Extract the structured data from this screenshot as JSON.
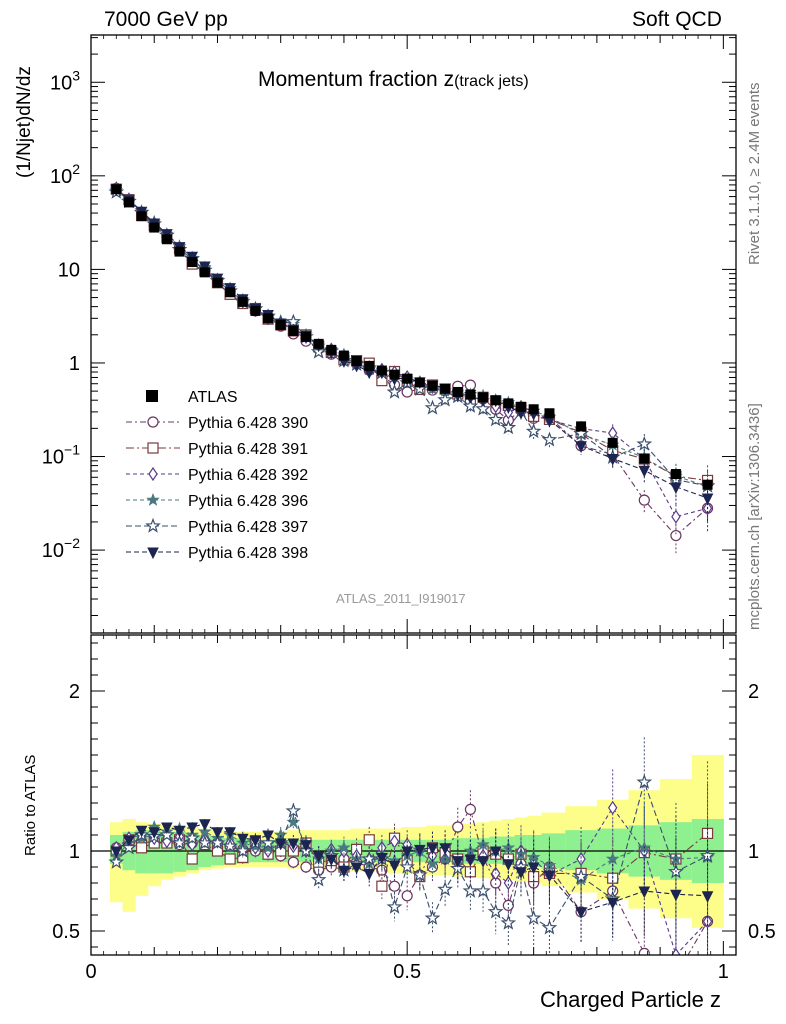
{
  "header": {
    "left": "7000 GeV pp",
    "right": "Soft QCD"
  },
  "side_labels": {
    "rivet": "Rivet 3.1.10, ≥ 2.4M events",
    "mcplots": "mcplots.cern.ch [arXiv:1306.3436]"
  },
  "plot": {
    "title_main": "Momentum fraction z",
    "title_sub": "(track jets)",
    "analysis_ref": "ATLAS_2011_I919017",
    "ylabel_main": "(1/Njet)dN/dz",
    "ylabel_ratio": "Ratio to ATLAS",
    "xlabel": "Charged Particle z"
  },
  "ticks": {
    "x": [
      {
        "v": 0,
        "label": "0"
      },
      {
        "v": 0.5,
        "label": "0.5"
      },
      {
        "v": 1,
        "label": "1"
      }
    ],
    "y_main": [
      {
        "v": 0.01,
        "base": "10",
        "exp": "−2"
      },
      {
        "v": 0.1,
        "base": "10",
        "exp": "−1"
      },
      {
        "v": 1,
        "base": "1",
        "exp": ""
      },
      {
        "v": 10,
        "base": "10",
        "exp": ""
      },
      {
        "v": 100,
        "base": "10",
        "exp": "2"
      },
      {
        "v": 1000,
        "base": "10",
        "exp": "3"
      }
    ],
    "y_ratio": [
      {
        "v": 0.5,
        "label": "0.5"
      },
      {
        "v": 1,
        "label": "1"
      },
      {
        "v": 2,
        "label": "2"
      }
    ]
  },
  "colors": {
    "yellow_band": "#fdfd8a",
    "green_band": "#8ef08e",
    "data": "#000000"
  },
  "chart_data": {
    "type": "line",
    "xlim": [
      0,
      1.02
    ],
    "ylim_main": [
      0.0013,
      3200
    ],
    "yscale_main": "log",
    "ylim_ratio": [
      0.35,
      2.35
    ],
    "x": [
      0.04,
      0.06,
      0.08,
      0.1,
      0.12,
      0.14,
      0.16,
      0.18,
      0.2,
      0.22,
      0.24,
      0.26,
      0.28,
      0.3,
      0.32,
      0.34,
      0.36,
      0.38,
      0.4,
      0.42,
      0.44,
      0.46,
      0.48,
      0.5,
      0.52,
      0.54,
      0.56,
      0.58,
      0.6,
      0.62,
      0.64,
      0.66,
      0.68,
      0.7,
      0.725,
      0.775,
      0.825,
      0.875,
      0.925,
      0.975
    ],
    "data": {
      "name": "ATLAS",
      "values": [
        72,
        52,
        37,
        28,
        21,
        15.5,
        12,
        9.3,
        7.2,
        5.7,
        4.5,
        3.6,
        3.0,
        2.55,
        2.2,
        1.9,
        1.6,
        1.38,
        1.2,
        1.05,
        0.93,
        0.83,
        0.75,
        0.68,
        0.62,
        0.57,
        0.53,
        0.49,
        0.46,
        0.43,
        0.4,
        0.37,
        0.34,
        0.32,
        0.29,
        0.21,
        0.14,
        0.095,
        0.065,
        0.05
      ],
      "band_inner": [
        [
          0.92,
          1.1
        ],
        [
          0.88,
          1.12
        ],
        [
          0.86,
          1.13
        ],
        [
          0.86,
          1.13
        ],
        [
          0.86,
          1.12
        ],
        [
          0.87,
          1.12
        ],
        [
          0.88,
          1.11
        ],
        [
          0.9,
          1.1
        ],
        [
          0.91,
          1.09
        ],
        [
          0.92,
          1.08
        ],
        [
          0.92,
          1.08
        ],
        [
          0.93,
          1.07
        ],
        [
          0.93,
          1.07
        ],
        [
          0.93,
          1.07
        ],
        [
          0.93,
          1.07
        ],
        [
          0.93,
          1.07
        ],
        [
          0.93,
          1.07
        ],
        [
          0.93,
          1.07
        ],
        [
          0.93,
          1.07
        ],
        [
          0.93,
          1.07
        ],
        [
          0.93,
          1.07
        ],
        [
          0.93,
          1.07
        ],
        [
          0.93,
          1.07
        ],
        [
          0.93,
          1.07
        ],
        [
          0.93,
          1.07
        ],
        [
          0.93,
          1.07
        ],
        [
          0.93,
          1.07
        ],
        [
          0.92,
          1.08
        ],
        [
          0.92,
          1.08
        ],
        [
          0.92,
          1.08
        ],
        [
          0.92,
          1.09
        ],
        [
          0.91,
          1.09
        ],
        [
          0.91,
          1.1
        ],
        [
          0.9,
          1.1
        ],
        [
          0.89,
          1.11
        ],
        [
          0.88,
          1.13
        ],
        [
          0.86,
          1.14
        ],
        [
          0.84,
          1.16
        ],
        [
          0.82,
          1.18
        ],
        [
          0.8,
          1.2
        ]
      ],
      "band_outer": [
        [
          0.68,
          1.18
        ],
        [
          0.62,
          1.2
        ],
        [
          0.72,
          1.18
        ],
        [
          0.78,
          1.17
        ],
        [
          0.82,
          1.16
        ],
        [
          0.84,
          1.16
        ],
        [
          0.86,
          1.15
        ],
        [
          0.88,
          1.14
        ],
        [
          0.89,
          1.13
        ],
        [
          0.9,
          1.12
        ],
        [
          0.9,
          1.12
        ],
        [
          0.9,
          1.12
        ],
        [
          0.9,
          1.12
        ],
        [
          0.9,
          1.12
        ],
        [
          0.89,
          1.13
        ],
        [
          0.89,
          1.13
        ],
        [
          0.88,
          1.13
        ],
        [
          0.88,
          1.13
        ],
        [
          0.88,
          1.13
        ],
        [
          0.87,
          1.14
        ],
        [
          0.87,
          1.14
        ],
        [
          0.87,
          1.14
        ],
        [
          0.86,
          1.14
        ],
        [
          0.86,
          1.15
        ],
        [
          0.86,
          1.15
        ],
        [
          0.85,
          1.16
        ],
        [
          0.85,
          1.16
        ],
        [
          0.84,
          1.17
        ],
        [
          0.84,
          1.17
        ],
        [
          0.83,
          1.18
        ],
        [
          0.82,
          1.19
        ],
        [
          0.82,
          1.2
        ],
        [
          0.81,
          1.21
        ],
        [
          0.8,
          1.22
        ],
        [
          0.78,
          1.24
        ],
        [
          0.74,
          1.28
        ],
        [
          0.7,
          1.32
        ],
        [
          0.64,
          1.38
        ],
        [
          0.58,
          1.45
        ],
        [
          0.52,
          1.6
        ]
      ]
    },
    "series": [
      {
        "name": "Pythia 6.428 390",
        "color": "#6b3560",
        "dash": "6,3,2,3",
        "marker": "circle-open",
        "ratio": [
          1.02,
          1.05,
          1.06,
          1.05,
          1.06,
          1.04,
          1.05,
          1.06,
          1.05,
          1.03,
          1.01,
          1.0,
          0.99,
          0.97,
          0.93,
          0.9,
          0.88,
          0.9,
          0.95,
          0.93,
          0.9,
          0.88,
          0.78,
          0.72,
          0.85,
          0.9,
          0.95,
          1.15,
          1.26,
          0.96,
          0.8,
          0.66,
          0.92,
          0.8,
          0.9,
          0.62,
          0.75,
          0.36,
          0.22,
          0.56
        ],
        "ratio_err": [
          0.02,
          0.02,
          0.02,
          0.02,
          0.02,
          0.03,
          0.03,
          0.03,
          0.03,
          0.03,
          0.04,
          0.04,
          0.04,
          0.05,
          0.05,
          0.05,
          0.06,
          0.06,
          0.07,
          0.07,
          0.08,
          0.08,
          0.09,
          0.09,
          0.1,
          0.1,
          0.11,
          0.12,
          0.12,
          0.13,
          0.14,
          0.15,
          0.16,
          0.17,
          0.18,
          0.2,
          0.24,
          0.28,
          0.35,
          0.45
        ]
      },
      {
        "name": "Pythia 6.428 391",
        "color": "#7a3b3b",
        "dash": "8,3,2,3",
        "marker": "square-open",
        "ratio": [
          1.0,
          1.07,
          1.02,
          1.05,
          1.05,
          1.07,
          0.95,
          1.04,
          1.0,
          0.95,
          0.96,
          1.06,
          0.98,
          1.0,
          1.0,
          1.05,
          0.93,
          0.94,
          0.9,
          1.01,
          1.07,
          0.78,
          1.08,
          0.94,
          0.84,
          1.02,
          0.99,
          0.95,
          0.87,
          1.0,
          0.98,
          0.95,
          0.98,
          0.84,
          0.86,
          0.86,
          0.83,
          0.99,
          0.95,
          1.11
        ],
        "ratio_err": [
          0.02,
          0.02,
          0.02,
          0.02,
          0.02,
          0.03,
          0.03,
          0.03,
          0.03,
          0.03,
          0.04,
          0.04,
          0.04,
          0.05,
          0.05,
          0.05,
          0.06,
          0.06,
          0.07,
          0.07,
          0.08,
          0.08,
          0.09,
          0.09,
          0.1,
          0.1,
          0.11,
          0.12,
          0.12,
          0.13,
          0.14,
          0.15,
          0.16,
          0.17,
          0.18,
          0.2,
          0.24,
          0.28,
          0.35,
          0.45
        ]
      },
      {
        "name": "Pythia 6.428 392",
        "color": "#5a3a8a",
        "dash": "4,3",
        "marker": "diamond-open",
        "ratio": [
          1.02,
          1.08,
          1.1,
          1.08,
          1.06,
          1.09,
          1.04,
          1.07,
          1.06,
          1.05,
          1.01,
          1.02,
          1.0,
          1.05,
          1.03,
          1.0,
          0.97,
          1.01,
          1.0,
          0.97,
          0.95,
          1.02,
          1.06,
          1.04,
          1.0,
          0.97,
          0.95,
          0.92,
          0.95,
          0.97,
          0.86,
          0.8,
          1.0,
          0.95,
          0.85,
          0.95,
          1.27,
          1.0,
          0.35,
          0.56
        ],
        "ratio_err": [
          0.02,
          0.02,
          0.02,
          0.02,
          0.02,
          0.03,
          0.03,
          0.03,
          0.03,
          0.03,
          0.04,
          0.04,
          0.04,
          0.05,
          0.05,
          0.05,
          0.06,
          0.06,
          0.07,
          0.07,
          0.08,
          0.08,
          0.09,
          0.09,
          0.1,
          0.1,
          0.11,
          0.12,
          0.12,
          0.13,
          0.14,
          0.15,
          0.16,
          0.17,
          0.18,
          0.2,
          0.24,
          0.28,
          0.35,
          0.45
        ]
      },
      {
        "name": "Pythia 6.428 396",
        "color": "#4a7a80",
        "dash": "4,3",
        "marker": "star-filled",
        "ratio": [
          0.97,
          1.05,
          1.08,
          1.15,
          1.12,
          1.14,
          1.1,
          1.12,
          1.08,
          1.1,
          1.05,
          1.03,
          1.02,
          1.1,
          1.18,
          1.05,
          0.95,
          1.0,
          1.02,
          0.95,
          0.92,
          0.97,
          0.94,
          0.97,
          1.0,
          0.92,
          0.95,
          0.92,
          1.0,
          1.04,
          1.0,
          1.02,
          0.98,
          0.96,
          0.91,
          0.82,
          0.95,
          1.02,
          0.95,
          0.96
        ],
        "ratio_err": [
          0.02,
          0.02,
          0.02,
          0.02,
          0.02,
          0.03,
          0.03,
          0.03,
          0.03,
          0.03,
          0.04,
          0.04,
          0.04,
          0.05,
          0.05,
          0.05,
          0.06,
          0.06,
          0.07,
          0.07,
          0.08,
          0.08,
          0.09,
          0.09,
          0.1,
          0.1,
          0.11,
          0.12,
          0.12,
          0.13,
          0.14,
          0.15,
          0.16,
          0.17,
          0.18,
          0.2,
          0.24,
          0.28,
          0.35,
          0.45
        ]
      },
      {
        "name": "Pythia 6.428 397",
        "color": "#3a4f6e",
        "dash": "6,3",
        "marker": "star-open",
        "ratio": [
          0.93,
          1.02,
          1.1,
          1.09,
          1.1,
          1.05,
          1.08,
          1.05,
          1.05,
          1.03,
          1.0,
          1.05,
          1.05,
          1.05,
          1.25,
          1.0,
          0.82,
          0.97,
          0.88,
          0.92,
          0.95,
          0.95,
          0.65,
          0.9,
          0.85,
          0.58,
          0.76,
          0.89,
          0.75,
          0.75,
          0.62,
          0.55,
          0.9,
          0.58,
          0.52,
          0.84,
          0.7,
          1.43,
          0.87,
          0.97
        ],
        "ratio_err": [
          0.02,
          0.02,
          0.02,
          0.02,
          0.02,
          0.03,
          0.03,
          0.03,
          0.03,
          0.03,
          0.04,
          0.04,
          0.04,
          0.05,
          0.05,
          0.05,
          0.06,
          0.06,
          0.07,
          0.07,
          0.08,
          0.08,
          0.09,
          0.09,
          0.1,
          0.1,
          0.11,
          0.12,
          0.12,
          0.13,
          0.14,
          0.15,
          0.16,
          0.17,
          0.18,
          0.2,
          0.24,
          0.28,
          0.35,
          0.45
        ]
      },
      {
        "name": "Pythia 6.428 398",
        "color": "#1c2450",
        "dash": "5,3",
        "marker": "triangle-down-filled",
        "ratio": [
          1.0,
          1.07,
          1.13,
          1.12,
          1.15,
          1.13,
          1.15,
          1.17,
          1.12,
          1.12,
          1.08,
          1.07,
          1.1,
          1.05,
          1.05,
          1.04,
          0.97,
          0.95,
          0.88,
          0.9,
          0.86,
          0.96,
          0.91,
          1.0,
          1.01,
          1.02,
          1.02,
          0.94,
          0.95,
          0.94,
          1.0,
          0.92,
          0.87,
          0.9,
          0.85,
          0.62,
          0.68,
          0.75,
          0.73,
          0.72
        ],
        "ratio_err": [
          0.02,
          0.02,
          0.02,
          0.02,
          0.02,
          0.03,
          0.03,
          0.03,
          0.03,
          0.03,
          0.04,
          0.04,
          0.04,
          0.05,
          0.05,
          0.05,
          0.06,
          0.06,
          0.07,
          0.07,
          0.08,
          0.08,
          0.09,
          0.09,
          0.1,
          0.1,
          0.11,
          0.12,
          0.12,
          0.13,
          0.14,
          0.15,
          0.16,
          0.17,
          0.18,
          0.2,
          0.24,
          0.28,
          0.35,
          0.45
        ]
      }
    ]
  }
}
